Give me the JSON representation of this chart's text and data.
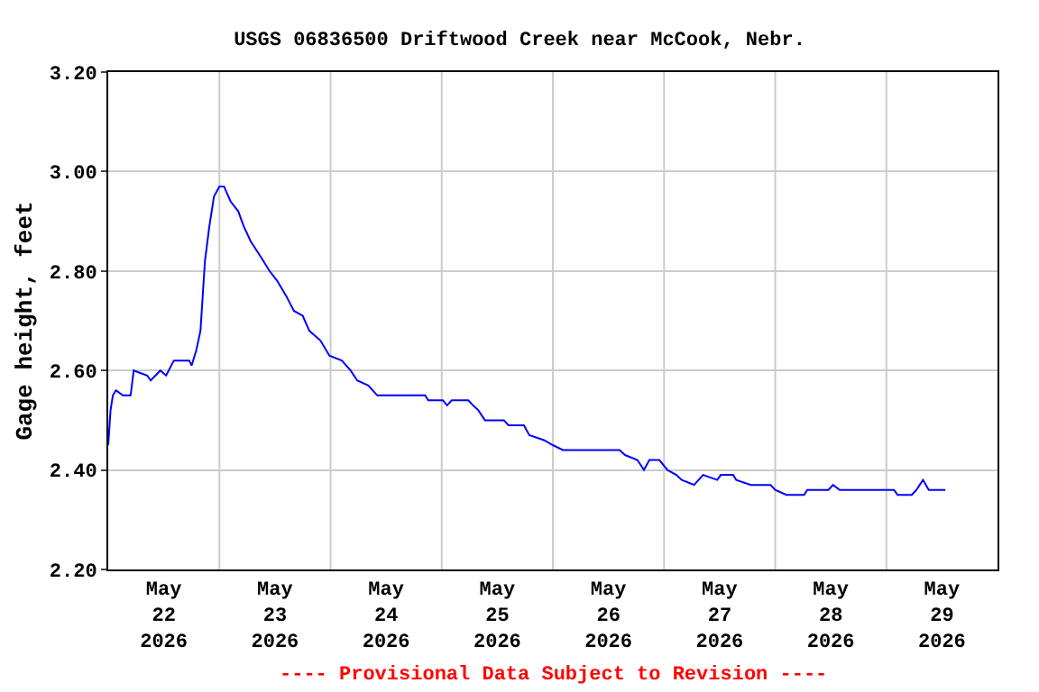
{
  "chart_data": {
    "type": "line",
    "title": "USGS 06836500 Driftwood Creek near McCook, Nebr.",
    "ylabel": "Gage height, feet",
    "annotations": [
      "---- Provisional Data Subject to Revision ----"
    ],
    "x": [
      "2026-05-22T00:00",
      "2026-05-22T00:30",
      "2026-05-22T01:00",
      "2026-05-22T01:40",
      "2026-05-22T03:10",
      "2026-05-22T04:50",
      "2026-05-22T05:30",
      "2026-05-22T08:25",
      "2026-05-22T09:10",
      "2026-05-22T11:15",
      "2026-05-22T12:30",
      "2026-05-22T14:10",
      "2026-05-22T17:30",
      "2026-05-22T18:00",
      "2026-05-22T19:00",
      "2026-05-22T19:55",
      "2026-05-22T20:53",
      "2026-05-22T21:50",
      "2026-05-22T22:50",
      "2026-05-23T00:00",
      "2026-05-23T01:00",
      "2026-05-23T02:25",
      "2026-05-23T04:05",
      "2026-05-23T05:15",
      "2026-05-23T06:45",
      "2026-05-23T08:50",
      "2026-05-23T10:50",
      "2026-05-23T12:30",
      "2026-05-23T14:25",
      "2026-05-23T16:05",
      "2026-05-23T18:00",
      "2026-05-23T19:25",
      "2026-05-23T21:50",
      "2026-05-23T23:45",
      "2026-05-24T02:25",
      "2026-05-24T04:20",
      "2026-05-24T05:45",
      "2026-05-24T08:10",
      "2026-05-24T10:05",
      "2026-05-24T14:40",
      "2026-05-24T20:25",
      "2026-05-24T21:05",
      "2026-05-25T00:15",
      "2026-05-25T01:10",
      "2026-05-25T02:10",
      "2026-05-25T05:45",
      "2026-05-25T06:45",
      "2026-05-25T07:55",
      "2026-05-25T09:20",
      "2026-05-25T13:25",
      "2026-05-25T14:25",
      "2026-05-25T17:45",
      "2026-05-25T18:55",
      "2026-05-25T22:05",
      "2026-05-26T00:00",
      "2026-05-26T02:10",
      "2026-05-26T14:25",
      "2026-05-26T15:35",
      "2026-05-26T18:15",
      "2026-05-26T19:40",
      "2026-05-26T20:50",
      "2026-05-26T23:00",
      "2026-05-27T00:45",
      "2026-05-27T02:40",
      "2026-05-27T03:50",
      "2026-05-27T06:30",
      "2026-05-27T08:25",
      "2026-05-27T11:30",
      "2026-05-27T12:15",
      "2026-05-27T14:55",
      "2026-05-27T15:35",
      "2026-05-27T18:45",
      "2026-05-27T23:00",
      "2026-05-28T00:00",
      "2026-05-28T02:25",
      "2026-05-28T06:15",
      "2026-05-28T06:55",
      "2026-05-28T11:30",
      "2026-05-28T12:30",
      "2026-05-28T13:55",
      "2026-05-28T18:55",
      "2026-05-29T01:40",
      "2026-05-29T02:25",
      "2026-05-29T05:30",
      "2026-05-29T06:30",
      "2026-05-29T07:55",
      "2026-05-29T09:10",
      "2026-05-29T12:45"
    ],
    "series": [
      {
        "color": "#0000ff",
        "values": [
          2.45,
          2.52,
          2.55,
          2.56,
          2.55,
          2.55,
          2.6,
          2.59,
          2.58,
          2.6,
          2.59,
          2.62,
          2.62,
          2.61,
          2.64,
          2.68,
          2.82,
          2.89,
          2.95,
          2.97,
          2.97,
          2.94,
          2.92,
          2.89,
          2.86,
          2.83,
          2.8,
          2.78,
          2.75,
          2.72,
          2.71,
          2.68,
          2.66,
          2.63,
          2.62,
          2.6,
          2.58,
          2.57,
          2.55,
          2.55,
          2.55,
          2.54,
          2.54,
          2.53,
          2.54,
          2.54,
          2.53,
          2.52,
          2.5,
          2.5,
          2.49,
          2.49,
          2.47,
          2.46,
          2.45,
          2.44,
          2.44,
          2.43,
          2.42,
          2.4,
          2.42,
          2.42,
          2.4,
          2.39,
          2.38,
          2.37,
          2.39,
          2.38,
          2.39,
          2.39,
          2.38,
          2.37,
          2.37,
          2.36,
          2.35,
          2.35,
          2.36,
          2.36,
          2.37,
          2.36,
          2.36,
          2.36,
          2.35,
          2.35,
          2.36,
          2.38,
          2.36,
          2.36
        ]
      }
    ],
    "xlim": [
      "2026-05-22T00:00",
      "2026-05-30T00:00"
    ],
    "xticks": [
      {
        "value": "2026-05-22T12:00",
        "label": "May\n22\n2026"
      },
      {
        "value": "2026-05-23T12:00",
        "label": "May\n23\n2026"
      },
      {
        "value": "2026-05-24T12:00",
        "label": "May\n24\n2026"
      },
      {
        "value": "2026-05-25T12:00",
        "label": "May\n25\n2026"
      },
      {
        "value": "2026-05-26T12:00",
        "label": "May\n26\n2026"
      },
      {
        "value": "2026-05-27T12:00",
        "label": "May\n27\n2026"
      },
      {
        "value": "2026-05-28T12:00",
        "label": "May\n28\n2026"
      },
      {
        "value": "2026-05-29T12:00",
        "label": "May\n29\n2026"
      },
      {
        "value": "2026-05-23T00:00",
        "label": null
      },
      {
        "value": "2026-05-24T00:00",
        "label": null
      },
      {
        "value": "2026-05-25T00:00",
        "label": null
      },
      {
        "value": "2026-05-26T00:00",
        "label": null
      },
      {
        "value": "2026-05-27T00:00",
        "label": null
      },
      {
        "value": "2026-05-28T00:00",
        "label": null
      },
      {
        "value": "2026-05-29T00:00",
        "label": null
      }
    ],
    "ylim": [
      2.2,
      3.2
    ],
    "yticks": [
      {
        "value": 2.2,
        "label": "2.20"
      },
      {
        "value": 2.4,
        "label": "2.40"
      },
      {
        "value": 2.6,
        "label": "2.60"
      },
      {
        "value": 2.8,
        "label": "2.80"
      },
      {
        "value": 3.0,
        "label": "3.00"
      },
      {
        "value": 3.2,
        "label": "3.20"
      }
    ],
    "grid": true,
    "marker": "none",
    "line_style": "solid"
  }
}
